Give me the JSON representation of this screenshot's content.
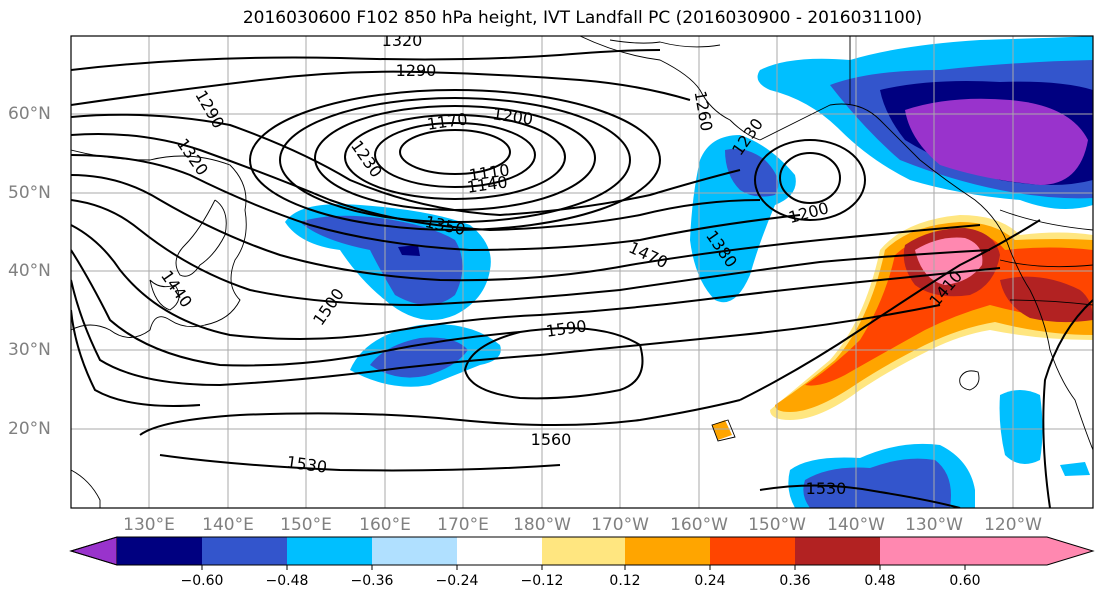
{
  "title": "2016030600 F102 850 hPa height, IVT Landfall PC (2016030900 - 2016031100)",
  "lat_labels": [
    "60°N",
    "50°N",
    "40°N",
    "30°N",
    "20°N"
  ],
  "lon_labels": [
    "130°E",
    "140°E",
    "150°E",
    "160°E",
    "170°E",
    "180°W",
    "170°W",
    "160°W",
    "150°W",
    "140°W",
    "130°W",
    "120°W"
  ],
  "colorbar": {
    "ticks": [
      "−0.60",
      "−0.48",
      "−0.36",
      "−0.24",
      "−0.12",
      "0.12",
      "0.24",
      "0.36",
      "0.48",
      "0.60"
    ],
    "colors": [
      "#9933cc",
      "#000080",
      "#3355cc",
      "#00bfff",
      "#b0e0ff",
      "#ffffff",
      "#ffe680",
      "#ffa500",
      "#ff4500",
      "#b22222",
      "#ff88b0"
    ]
  },
  "contour_labels": [
    "1320",
    "1290",
    "1290",
    "1320",
    "1230",
    "1170",
    "1200",
    "1260",
    "1230",
    "1110",
    "1140",
    "1200",
    "1350",
    "1380",
    "1470",
    "1410",
    "1440",
    "1500",
    "1590",
    "1560",
    "1530",
    "1530"
  ]
}
